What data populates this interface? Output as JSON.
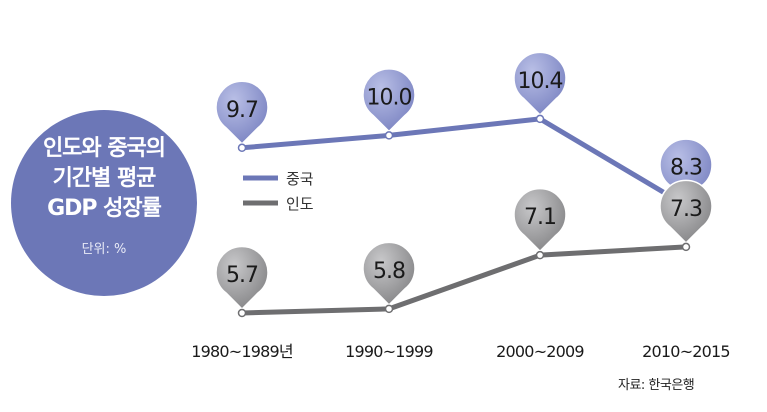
{
  "chart_data": {
    "type": "line",
    "title": "인도와 중국의 기간별 평균 GDP 성장률",
    "title_lines": [
      "인도와 중국의",
      "기간별 평균",
      "GDP 성장률"
    ],
    "unit": "단위: %",
    "source": "자료: 한국은행",
    "categories": [
      "1980~1989년",
      "1990~1999",
      "2000~2009",
      "2010~2015"
    ],
    "series": [
      {
        "name": "중국",
        "color": "#6c77b7",
        "values": [
          9.7,
          10.0,
          10.4,
          8.3
        ],
        "labels": [
          "9.7",
          "10.0",
          "10.4",
          "8.3"
        ]
      },
      {
        "name": "인도",
        "color": "#6e6e70",
        "values": [
          5.7,
          5.8,
          7.1,
          7.3
        ],
        "labels": [
          "5.7",
          "5.8",
          "7.1",
          "7.3"
        ]
      }
    ],
    "legend_position": "left-middle",
    "grid": false
  },
  "colors": {
    "china_marker": "#8f96c9",
    "india_marker": "#9a9a9c",
    "title_circle": "#6c77b7"
  }
}
